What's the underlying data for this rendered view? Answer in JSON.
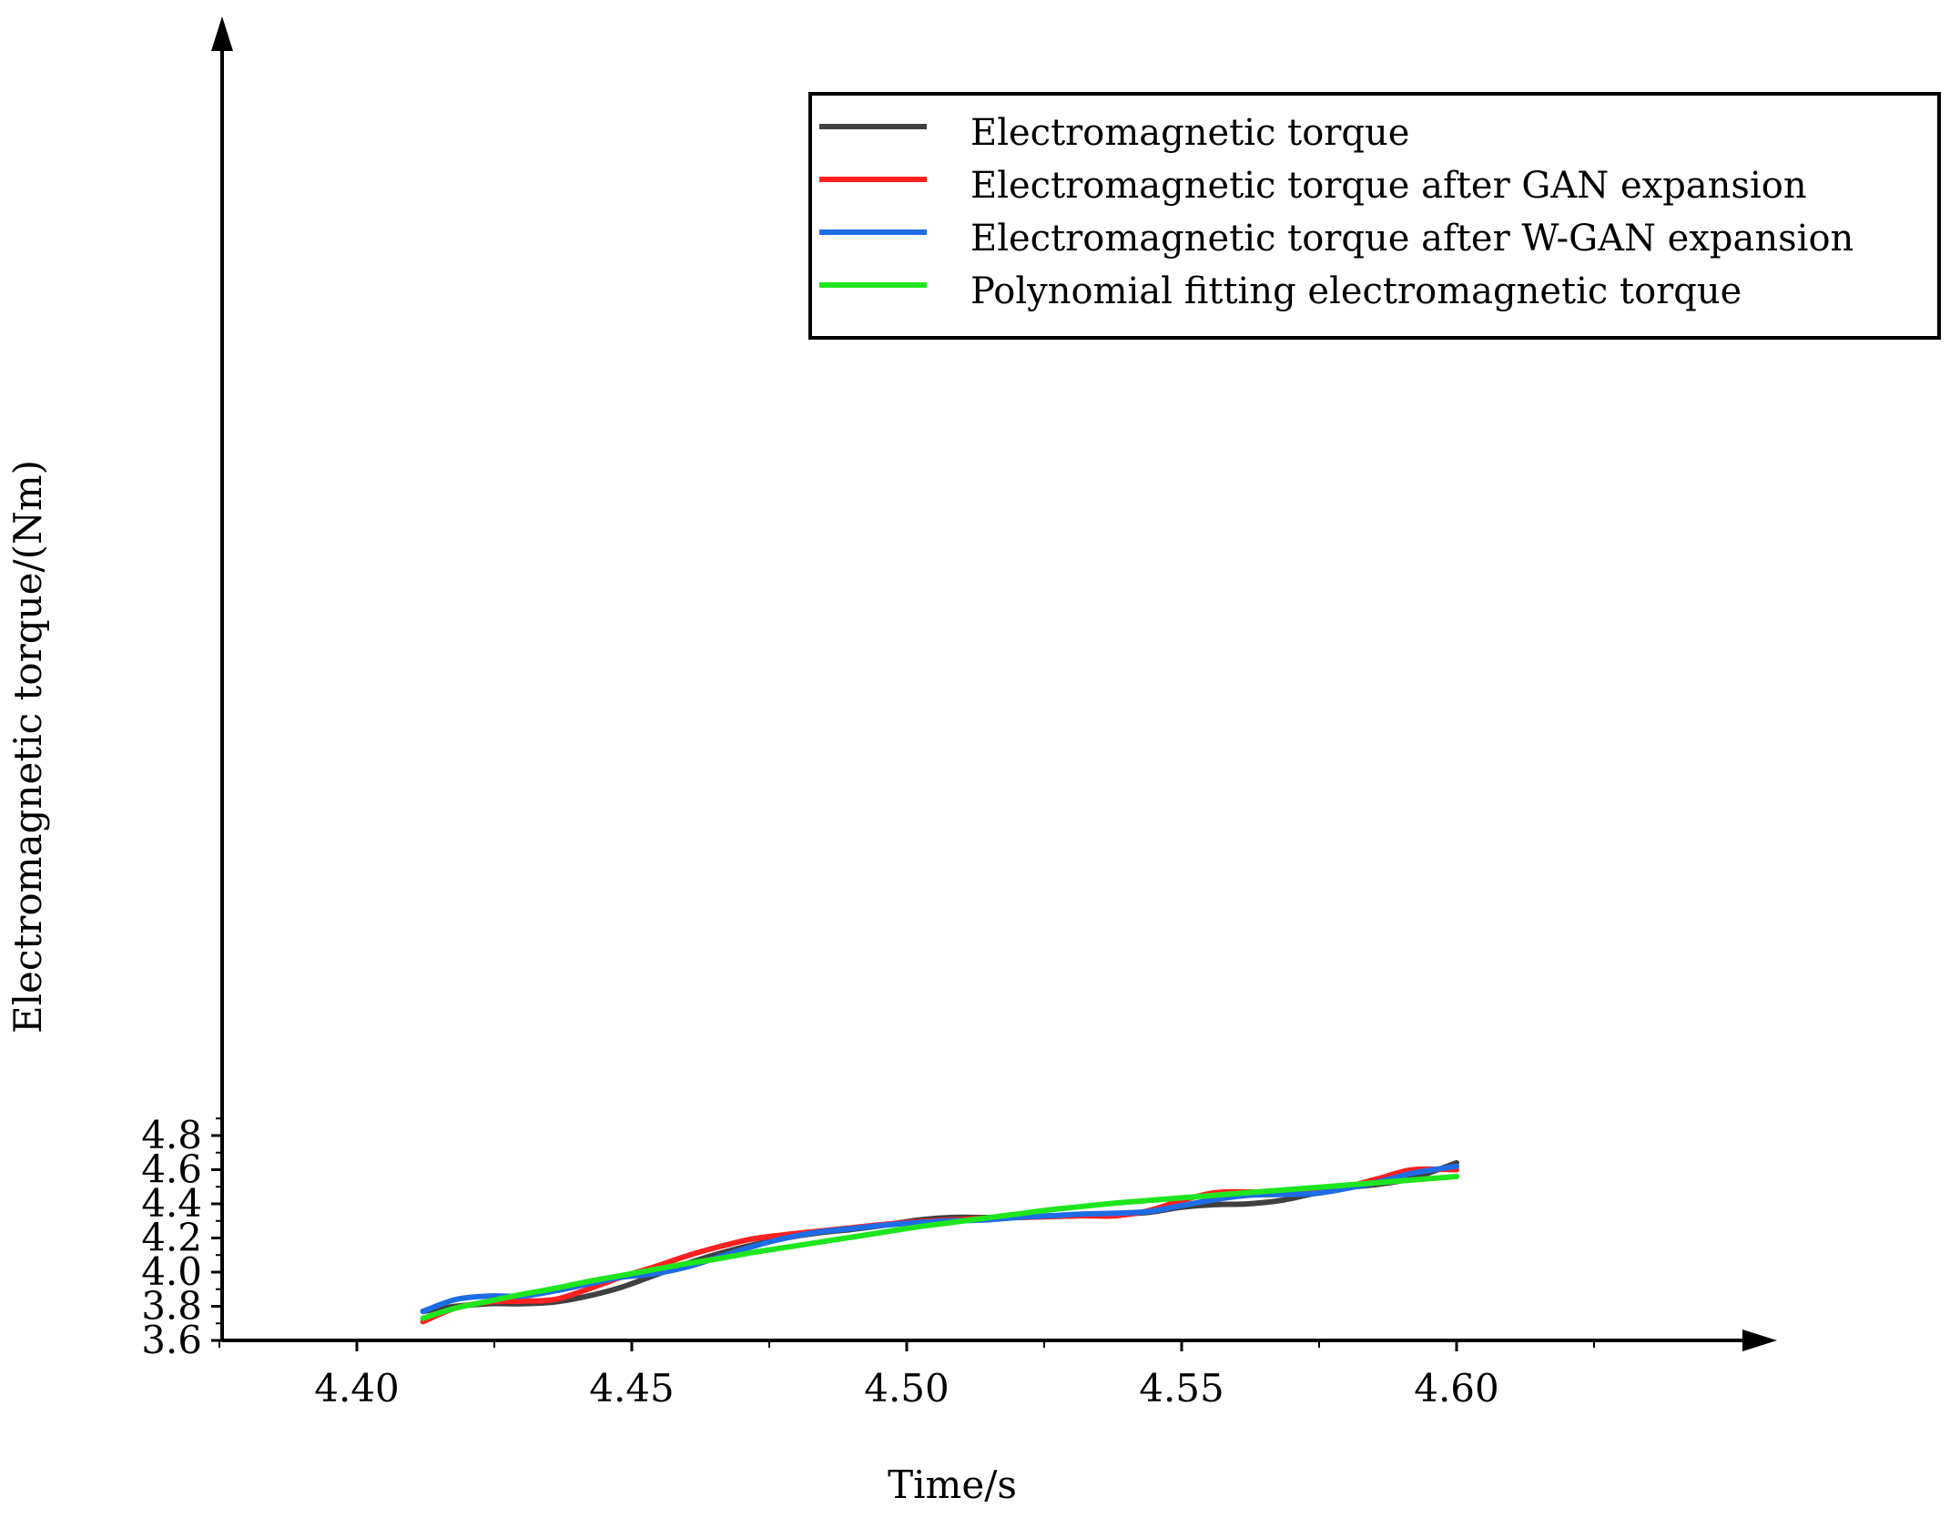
{
  "chart_data": {
    "type": "line",
    "title": "",
    "xlabel": "Time/s",
    "ylabel": "Electromagnetic torque/(Nm)",
    "xlim": [
      4.376,
      4.65
    ],
    "ylim": [
      3.6,
      5.0
    ],
    "xticks": [
      4.4,
      4.45,
      4.5,
      4.55,
      4.6
    ],
    "xtick_labels": [
      "4.40",
      "4.45",
      "4.50",
      "4.55",
      "4.60"
    ],
    "yticks": [
      3.6,
      3.8,
      4.0,
      4.2,
      4.4,
      4.6,
      4.8
    ],
    "ytick_labels": [
      "3.6",
      "3.8",
      "4.0",
      "4.2",
      "4.4",
      "4.6",
      "4.8"
    ],
    "grid": false,
    "legend_position": "top-right",
    "series": [
      {
        "name": "Electromagnetic torque",
        "color": "#404040",
        "x": [
          4.412,
          4.418,
          4.424,
          4.43,
          4.436,
          4.442,
          4.448,
          4.454,
          4.46,
          4.466,
          4.472,
          4.478,
          4.484,
          4.49,
          4.496,
          4.502,
          4.508,
          4.514,
          4.52,
          4.526,
          4.532,
          4.538,
          4.544,
          4.55,
          4.556,
          4.562,
          4.568,
          4.574,
          4.58,
          4.586,
          4.592,
          4.6
        ],
        "values": [
          3.77,
          3.8,
          3.815,
          3.815,
          3.825,
          3.86,
          3.91,
          3.98,
          4.05,
          4.11,
          4.16,
          4.2,
          4.23,
          4.25,
          4.275,
          4.305,
          4.32,
          4.32,
          4.32,
          4.33,
          4.335,
          4.34,
          4.35,
          4.38,
          4.395,
          4.4,
          4.42,
          4.46,
          4.495,
          4.515,
          4.55,
          4.64
        ]
      },
      {
        "name": "Electromagnetic torque after GAN expansion",
        "color": "#ff2020",
        "x": [
          4.412,
          4.418,
          4.424,
          4.43,
          4.436,
          4.442,
          4.448,
          4.454,
          4.46,
          4.466,
          4.472,
          4.478,
          4.484,
          4.49,
          4.496,
          4.502,
          4.508,
          4.514,
          4.52,
          4.526,
          4.532,
          4.538,
          4.544,
          4.55,
          4.556,
          4.562,
          4.568,
          4.574,
          4.58,
          4.586,
          4.592,
          4.6
        ],
        "values": [
          3.71,
          3.79,
          3.825,
          3.83,
          3.84,
          3.9,
          3.97,
          4.03,
          4.095,
          4.15,
          4.195,
          4.22,
          4.24,
          4.26,
          4.28,
          4.295,
          4.305,
          4.315,
          4.32,
          4.325,
          4.33,
          4.33,
          4.36,
          4.42,
          4.465,
          4.47,
          4.46,
          4.465,
          4.5,
          4.55,
          4.6,
          4.6
        ]
      },
      {
        "name": "Electromagnetic torque after W-GAN expansion",
        "color": "#1e6be6",
        "x": [
          4.412,
          4.418,
          4.424,
          4.43,
          4.436,
          4.442,
          4.448,
          4.454,
          4.46,
          4.466,
          4.472,
          4.478,
          4.484,
          4.49,
          4.496,
          4.502,
          4.508,
          4.514,
          4.52,
          4.526,
          4.532,
          4.538,
          4.544,
          4.55,
          4.556,
          4.562,
          4.568,
          4.574,
          4.58,
          4.586,
          4.592,
          4.6
        ],
        "values": [
          3.77,
          3.84,
          3.86,
          3.86,
          3.89,
          3.93,
          3.97,
          3.99,
          4.03,
          4.09,
          4.15,
          4.2,
          4.235,
          4.255,
          4.275,
          4.29,
          4.3,
          4.305,
          4.32,
          4.33,
          4.34,
          4.345,
          4.355,
          4.39,
          4.425,
          4.45,
          4.455,
          4.46,
          4.49,
          4.53,
          4.58,
          4.62
        ]
      },
      {
        "name": "Polynomial fitting electromagnetic torque",
        "color": "#1ee61e",
        "x": [
          4.412,
          4.418,
          4.424,
          4.43,
          4.436,
          4.442,
          4.448,
          4.454,
          4.46,
          4.466,
          4.472,
          4.478,
          4.484,
          4.49,
          4.496,
          4.502,
          4.508,
          4.514,
          4.52,
          4.526,
          4.532,
          4.538,
          4.544,
          4.55,
          4.556,
          4.562,
          4.568,
          4.574,
          4.58,
          4.586,
          4.592,
          4.6
        ],
        "values": [
          3.73,
          3.79,
          3.83,
          3.87,
          3.905,
          3.945,
          3.98,
          4.015,
          4.05,
          4.08,
          4.115,
          4.145,
          4.175,
          4.205,
          4.235,
          4.265,
          4.29,
          4.315,
          4.34,
          4.365,
          4.385,
          4.405,
          4.42,
          4.435,
          4.45,
          4.465,
          4.48,
          4.495,
          4.51,
          4.525,
          4.54,
          4.56
        ]
      }
    ]
  }
}
